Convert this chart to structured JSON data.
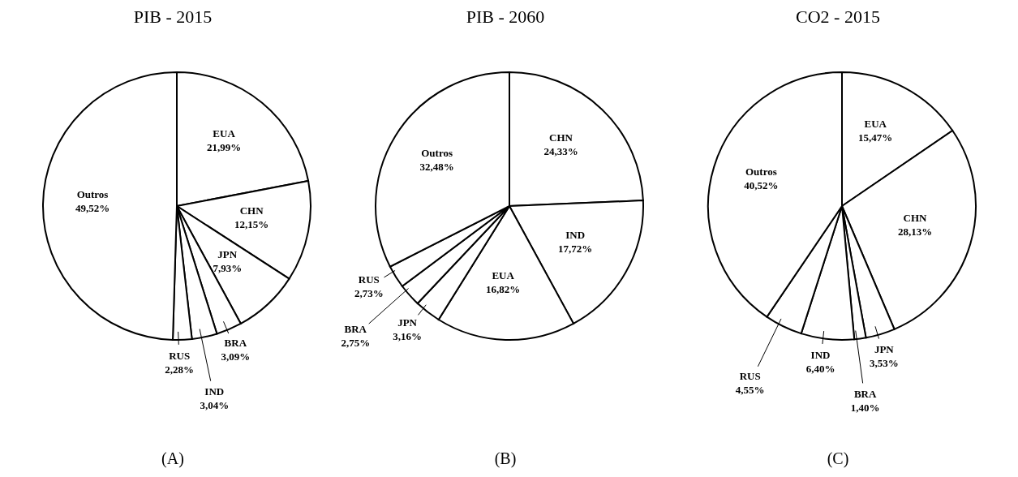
{
  "chart_data": [
    {
      "type": "pie",
      "title": "PIB - 2015",
      "categories": [
        "EUA",
        "CHN",
        "JPN",
        "BRA",
        "IND",
        "RUS",
        "Outros"
      ],
      "values": [
        21.99,
        12.15,
        7.93,
        3.09,
        3.04,
        2.28,
        49.52
      ],
      "colors": [
        "#ffffff",
        "#ffffff",
        "#ffffff",
        "#ffffff",
        "#ffffff",
        "#ffffff",
        "#ffffff"
      ],
      "value_labels": [
        "21,99%",
        "12,15%",
        "7,93%",
        "3,09%",
        "3,04%",
        "2,28%",
        "49,52%"
      ],
      "annotations": [
        "(A)"
      ]
    },
    {
      "type": "pie",
      "title": "PIB - 2060",
      "categories": [
        "CHN",
        "IND",
        "EUA",
        "JPN",
        "BRA",
        "RUS",
        "Outros"
      ],
      "values": [
        24.33,
        17.72,
        16.82,
        3.16,
        2.75,
        2.73,
        32.48
      ],
      "colors": [
        "#ffffff",
        "#ffffff",
        "#ffffff",
        "#ffffff",
        "#ffffff",
        "#ffffff",
        "#ffffff"
      ],
      "value_labels": [
        "24,33%",
        "17,72%",
        "16,82%",
        "3,16%",
        "2,75%",
        "2,73%",
        "32,48%"
      ],
      "annotations": [
        "(B)"
      ]
    },
    {
      "type": "pie",
      "title": "CO2 - 2015",
      "categories": [
        "EUA",
        "CHN",
        "JPN",
        "BRA",
        "IND",
        "RUS",
        "Outros"
      ],
      "values": [
        15.47,
        28.13,
        3.53,
        1.4,
        6.4,
        4.55,
        40.52
      ],
      "colors": [
        "#ffffff",
        "#ffffff",
        "#ffffff",
        "#ffffff",
        "#ffffff",
        "#ffffff",
        "#ffffff"
      ],
      "value_labels": [
        "15,47%",
        "28,13%",
        "3,53%",
        "1,40%",
        "6,40%",
        "4,55%",
        "40,52%"
      ],
      "annotations": [
        "(C)"
      ]
    }
  ]
}
